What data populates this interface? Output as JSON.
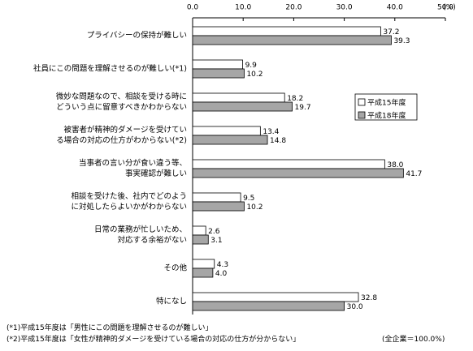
{
  "chart_data": {
    "type": "hbar",
    "categories": [
      "プライバシーの保持が難しい",
      "社員にこの問題を理解させるのが難しい(*1)",
      "微妙な問題なので、相談を受ける時に\nどういう点に留意すべきかわからない",
      "被害者が精神的ダメージを受けてい\nる場合の対応の仕方がわからない(*2)",
      "当事者の言い分が食い違う等、\n事実確認が難しい",
      "相談を受けた後、社内でどのよう\nに対処したらよいかがわからない",
      "日常の業務が忙しいため、\n対応する余裕がない",
      "その他",
      "特になし"
    ],
    "series": [
      {
        "name": "平成15年度",
        "color": "#ffffff",
        "values": [
          37.2,
          9.9,
          18.2,
          13.4,
          38.0,
          9.5,
          2.6,
          4.3,
          32.8
        ],
        "value_labels": [
          "37.2",
          "9.9",
          "18.2",
          "13.4",
          "38.0",
          "9.5",
          "2.6",
          "4.3",
          "32.8"
        ]
      },
      {
        "name": "平成18年度",
        "color": "#a6a6a6",
        "values": [
          39.3,
          10.2,
          19.7,
          14.8,
          41.7,
          10.2,
          3.1,
          4.0,
          30.0
        ],
        "value_labels": [
          "39.3",
          "10.2",
          "19.7",
          "14.8",
          "41.7",
          "10.2",
          "3.1",
          "4.0",
          "30.0"
        ]
      }
    ],
    "xlim": [
      0,
      50
    ],
    "xticks": [
      {
        "value": 0,
        "label": "0.0"
      },
      {
        "value": 10,
        "label": "10.0"
      },
      {
        "value": 20,
        "label": "20.0"
      },
      {
        "value": 30,
        "label": "30.0"
      },
      {
        "value": 40,
        "label": "40.0"
      },
      {
        "value": 50,
        "label": "50.0"
      }
    ],
    "xlabel": "(%)",
    "footnotes": [
      "(*1)平成15年度は「男性にこの問題を理解させるのが難しい」",
      "(*2)平成15年度は「女性が精神的ダメージを受けている場合の対応の仕方が分からない」"
    ],
    "note": "(全企業＝100.0%)",
    "grid": false
  }
}
